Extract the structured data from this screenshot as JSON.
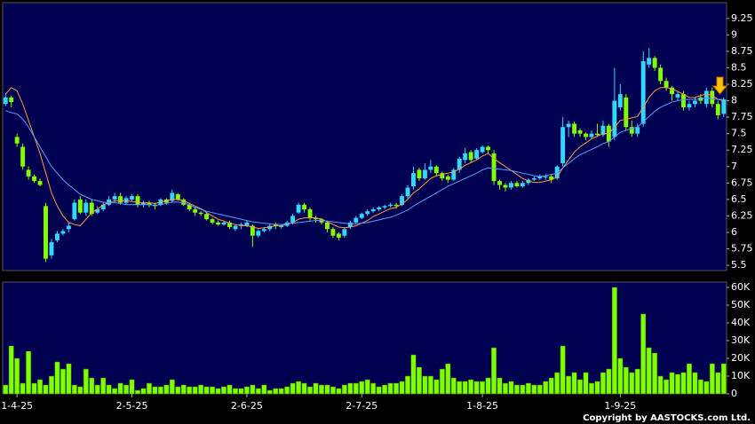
{
  "chart_data": [
    {
      "type": "candlestick",
      "up_color": "#33d6ff",
      "down_color": "#80ff00",
      "ylim": [
        5.42,
        9.49
      ],
      "yticks": [
        9.25,
        9,
        8.75,
        8.5,
        8.25,
        8,
        7.75,
        7.5,
        7.25,
        7,
        6.75,
        6.5,
        6.25,
        6,
        5.75,
        5.5
      ],
      "open": [
        7.95,
        8.05,
        7.45,
        7.3,
        6.95,
        6.85,
        6.78,
        6.4,
        5.65,
        5.88,
        5.98,
        6.05,
        6.2,
        6.5,
        6.3,
        6.45,
        6.3,
        6.35,
        6.42,
        6.5,
        6.55,
        6.45,
        6.5,
        6.55,
        6.42,
        6.45,
        6.42,
        6.42,
        6.5,
        6.48,
        6.58,
        6.5,
        6.42,
        6.35,
        6.3,
        6.28,
        6.2,
        6.15,
        6.12,
        6.15,
        6.05,
        6.1,
        6.1,
        6.1,
        5.95,
        6.02,
        6.05,
        6.12,
        6.08,
        6.1,
        6.15,
        6.3,
        6.42,
        6.35,
        6.22,
        6.2,
        6.15,
        6.05,
        5.98,
        5.95,
        6.08,
        6.15,
        6.22,
        6.28,
        6.32,
        6.35,
        6.38,
        6.4,
        6.42,
        6.42,
        6.55,
        6.7,
        6.95,
        6.82,
        6.95,
        7.0,
        6.9,
        6.85,
        6.8,
        6.95,
        7.1,
        7.22,
        7.12,
        7.22,
        7.3,
        7.2,
        6.78,
        6.72,
        6.68,
        6.75,
        6.7,
        6.75,
        6.8,
        6.82,
        6.85,
        6.85,
        6.82,
        7.05,
        7.6,
        7.65,
        7.55,
        7.5,
        7.45,
        7.5,
        7.48,
        7.62,
        7.45,
        7.9,
        8.05,
        7.6,
        7.5,
        7.65,
        8.55,
        8.65,
        8.5,
        8.3,
        8.2,
        8.05,
        8.1,
        7.9,
        7.95,
        8.05,
        7.95,
        8.15,
        7.95,
        7.8
      ],
      "high": [
        8.1,
        8.08,
        7.5,
        7.35,
        7.0,
        6.88,
        6.82,
        6.45,
        5.9,
        6.02,
        6.05,
        6.15,
        6.5,
        6.55,
        6.5,
        6.5,
        6.4,
        6.45,
        6.55,
        6.6,
        6.6,
        6.55,
        6.58,
        6.58,
        6.48,
        6.48,
        6.45,
        6.52,
        6.52,
        6.65,
        6.6,
        6.52,
        6.45,
        6.38,
        6.32,
        6.3,
        6.22,
        6.18,
        6.18,
        6.18,
        6.12,
        6.15,
        6.18,
        6.12,
        6.05,
        6.08,
        6.12,
        6.15,
        6.12,
        6.18,
        6.28,
        6.45,
        6.45,
        6.38,
        6.25,
        6.22,
        6.18,
        6.08,
        6.0,
        6.08,
        6.18,
        6.25,
        6.3,
        6.35,
        6.38,
        6.4,
        6.42,
        6.45,
        6.45,
        6.58,
        6.72,
        7.0,
        6.98,
        7.05,
        7.1,
        7.02,
        6.92,
        6.88,
        6.98,
        7.15,
        7.28,
        7.25,
        7.28,
        7.32,
        7.32,
        7.25,
        6.8,
        6.75,
        6.78,
        6.78,
        6.78,
        6.82,
        6.85,
        6.88,
        6.88,
        6.88,
        7.02,
        7.75,
        7.7,
        7.68,
        7.58,
        7.52,
        7.55,
        7.65,
        7.7,
        7.65,
        8.5,
        8.25,
        8.1,
        7.7,
        7.65,
        8.75,
        8.8,
        8.68,
        8.55,
        8.35,
        8.22,
        8.15,
        8.15,
        8.0,
        8.05,
        8.1,
        8.2,
        8.2,
        8.0,
        8.05
      ],
      "low": [
        7.92,
        7.9,
        7.3,
        6.95,
        6.8,
        6.75,
        6.7,
        5.55,
        5.6,
        5.85,
        5.95,
        6.0,
        6.18,
        6.28,
        6.25,
        6.25,
        6.28,
        6.32,
        6.4,
        6.45,
        6.42,
        6.42,
        6.48,
        6.38,
        6.38,
        6.38,
        6.35,
        6.4,
        6.42,
        6.45,
        6.48,
        6.4,
        6.32,
        6.25,
        6.25,
        6.18,
        6.12,
        6.1,
        6.1,
        6.05,
        6.02,
        6.05,
        6.08,
        5.78,
        5.92,
        6.0,
        6.02,
        6.05,
        6.05,
        6.08,
        6.12,
        6.28,
        6.3,
        6.18,
        6.15,
        6.12,
        6.0,
        5.92,
        5.88,
        5.92,
        6.05,
        6.12,
        6.2,
        6.25,
        6.3,
        6.32,
        6.35,
        6.38,
        6.36,
        6.4,
        6.5,
        6.65,
        6.78,
        6.8,
        6.9,
        6.85,
        6.78,
        6.75,
        6.78,
        6.9,
        7.05,
        7.05,
        7.1,
        7.2,
        7.2,
        6.72,
        6.65,
        6.62,
        6.65,
        6.68,
        6.68,
        6.72,
        6.78,
        6.8,
        6.8,
        6.75,
        6.8,
        7.0,
        7.45,
        7.45,
        7.45,
        7.4,
        7.42,
        7.45,
        7.45,
        7.3,
        7.4,
        7.85,
        7.55,
        7.45,
        7.45,
        7.6,
        8.5,
        8.45,
        8.25,
        8.15,
        8.0,
        8.0,
        7.85,
        7.85,
        7.9,
        7.95,
        7.9,
        7.9,
        7.72,
        7.75
      ],
      "close": [
        8.05,
        7.98,
        7.35,
        7.0,
        6.85,
        6.78,
        6.72,
        5.6,
        5.85,
        5.98,
        6.02,
        6.1,
        6.45,
        6.3,
        6.45,
        6.28,
        6.35,
        6.42,
        6.5,
        6.55,
        6.45,
        6.52,
        6.55,
        6.42,
        6.45,
        6.42,
        6.4,
        6.5,
        6.45,
        6.6,
        6.5,
        6.42,
        6.35,
        6.3,
        6.28,
        6.2,
        6.15,
        6.12,
        6.15,
        6.08,
        6.1,
        6.12,
        6.15,
        5.95,
        6.02,
        6.05,
        6.1,
        6.1,
        6.1,
        6.15,
        6.25,
        6.42,
        6.35,
        6.22,
        6.2,
        6.15,
        6.05,
        5.95,
        5.92,
        6.05,
        6.15,
        6.22,
        6.28,
        6.32,
        6.35,
        6.38,
        6.4,
        6.42,
        6.4,
        6.55,
        6.68,
        6.9,
        6.82,
        6.95,
        7.0,
        6.9,
        6.82,
        6.8,
        6.95,
        7.12,
        7.2,
        7.1,
        7.25,
        7.3,
        7.25,
        6.78,
        6.72,
        6.68,
        6.75,
        6.7,
        6.75,
        6.8,
        6.82,
        6.85,
        6.85,
        6.8,
        7.0,
        7.6,
        7.65,
        7.5,
        7.5,
        7.45,
        7.5,
        7.48,
        7.62,
        7.38,
        8.0,
        8.1,
        7.6,
        7.5,
        7.6,
        8.6,
        8.65,
        8.5,
        8.3,
        8.2,
        8.1,
        8.1,
        7.9,
        7.95,
        8.0,
        8.0,
        8.15,
        7.95,
        7.78,
        8.02
      ],
      "series": [
        {
          "color": "#ff9a3c",
          "values": [
            8.1,
            8.2,
            8.15,
            7.95,
            7.7,
            7.45,
            7.2,
            6.9,
            6.6,
            6.4,
            6.25,
            6.15,
            6.12,
            6.1,
            6.2,
            6.3,
            6.35,
            6.42,
            6.45,
            6.48,
            6.48,
            6.48,
            6.47,
            6.46,
            6.45,
            6.45,
            6.44,
            6.46,
            6.48,
            6.5,
            6.5,
            6.48,
            6.44,
            6.4,
            6.36,
            6.3,
            6.25,
            6.2,
            6.17,
            6.14,
            6.12,
            6.1,
            6.1,
            6.08,
            6.06,
            6.07,
            6.08,
            6.1,
            6.1,
            6.12,
            6.15,
            6.2,
            6.22,
            6.22,
            6.22,
            6.2,
            6.16,
            6.12,
            6.08,
            6.07,
            6.08,
            6.1,
            6.14,
            6.18,
            6.24,
            6.28,
            6.32,
            6.36,
            6.38,
            6.43,
            6.5,
            6.6,
            6.66,
            6.74,
            6.82,
            6.86,
            6.88,
            6.9,
            6.92,
            6.96,
            7.02,
            7.06,
            7.1,
            7.16,
            7.2,
            7.12,
            7.06,
            7.0,
            6.94,
            6.88,
            6.82,
            6.78,
            6.76,
            6.76,
            6.78,
            6.8,
            6.84,
            6.98,
            7.1,
            7.22,
            7.3,
            7.36,
            7.42,
            7.46,
            7.5,
            7.5,
            7.6,
            7.7,
            7.72,
            7.74,
            7.76,
            7.9,
            8.05,
            8.15,
            8.2,
            8.2,
            8.18,
            8.14,
            8.1,
            8.05,
            8.05,
            8.08,
            8.1,
            8.08,
            8.02,
            8.0
          ]
        },
        {
          "color": "#5a9cff",
          "values": [
            7.85,
            7.82,
            7.8,
            7.72,
            7.6,
            7.45,
            7.3,
            7.15,
            7.0,
            6.9,
            6.8,
            6.72,
            6.65,
            6.58,
            6.54,
            6.5,
            6.48,
            6.46,
            6.45,
            6.45,
            6.44,
            6.42,
            6.42,
            6.42,
            6.42,
            6.42,
            6.41,
            6.42,
            6.44,
            6.46,
            6.46,
            6.45,
            6.42,
            6.38,
            6.35,
            6.32,
            6.3,
            6.28,
            6.26,
            6.24,
            6.22,
            6.2,
            6.18,
            6.16,
            6.15,
            6.14,
            6.13,
            6.12,
            6.12,
            6.13,
            6.14,
            6.15,
            6.16,
            6.17,
            6.18,
            6.18,
            6.17,
            6.16,
            6.15,
            6.14,
            6.13,
            6.13,
            6.14,
            6.15,
            6.17,
            6.19,
            6.21,
            6.23,
            6.26,
            6.3,
            6.34,
            6.4,
            6.45,
            6.5,
            6.55,
            6.6,
            6.65,
            6.7,
            6.74,
            6.78,
            6.82,
            6.86,
            6.9,
            6.95,
            6.98,
            6.97,
            6.96,
            6.95,
            6.94,
            6.92,
            6.9,
            6.88,
            6.86,
            6.85,
            6.86,
            6.88,
            6.9,
            6.98,
            7.05,
            7.12,
            7.18,
            7.22,
            7.26,
            7.3,
            7.35,
            7.38,
            7.45,
            7.52,
            7.55,
            7.58,
            7.6,
            7.68,
            7.76,
            7.84,
            7.9,
            7.94,
            7.98,
            8.0,
            8.02,
            8.02,
            8.02,
            8.03,
            8.04,
            8.03,
            8.02,
            8.02
          ]
        }
      ]
    },
    {
      "type": "bar",
      "color": "#80ff00",
      "ylim": [
        0,
        63000
      ],
      "yticks": [
        {
          "value": 60000,
          "label": "60K"
        },
        {
          "value": 50000,
          "label": "50K"
        },
        {
          "value": 40000,
          "label": "40K"
        },
        {
          "value": 30000,
          "label": "30K"
        },
        {
          "value": 20000,
          "label": "20K"
        },
        {
          "value": 10000,
          "label": "10K"
        },
        0
      ],
      "categories": [
        null,
        null,
        "1-4-25",
        null,
        null,
        null,
        null,
        null,
        null,
        null,
        null,
        null,
        null,
        null,
        null,
        null,
        null,
        null,
        null,
        null,
        null,
        null,
        "2-5-25",
        null,
        null,
        null,
        null,
        null,
        null,
        null,
        null,
        null,
        null,
        null,
        null,
        null,
        null,
        null,
        null,
        null,
        null,
        null,
        "2-6-25",
        null,
        null,
        null,
        null,
        null,
        null,
        null,
        null,
        null,
        null,
        null,
        null,
        null,
        null,
        null,
        null,
        null,
        null,
        null,
        "2-7-25",
        null,
        null,
        null,
        null,
        null,
        null,
        null,
        null,
        null,
        null,
        null,
        null,
        null,
        null,
        null,
        null,
        null,
        null,
        null,
        null,
        "1-8-25",
        null,
        null,
        null,
        null,
        null,
        null,
        null,
        null,
        null,
        null,
        null,
        null,
        null,
        null,
        null,
        null,
        null,
        null,
        null,
        null,
        null,
        null,
        null,
        "1-9-25",
        null,
        null,
        null,
        null,
        null,
        null,
        null,
        null,
        null,
        null,
        null,
        null,
        null,
        null,
        null,
        null,
        null,
        null
      ],
      "values": [
        5000,
        27000,
        20000,
        6000,
        24000,
        6000,
        8000,
        5000,
        10000,
        18000,
        14000,
        17000,
        5000,
        4000,
        14000,
        9000,
        5000,
        9000,
        5000,
        3000,
        6000,
        5000,
        8000,
        2000,
        3000,
        6000,
        4000,
        4000,
        5000,
        8000,
        4000,
        5000,
        4000,
        4000,
        5000,
        4000,
        4000,
        3000,
        4000,
        5000,
        3000,
        3000,
        4000,
        5000,
        3000,
        5000,
        2000,
        3000,
        3000,
        4000,
        6000,
        7000,
        6000,
        4000,
        6000,
        5000,
        5000,
        4000,
        3000,
        5000,
        6000,
        6000,
        7000,
        8000,
        6000,
        4000,
        5000,
        6000,
        6000,
        7000,
        10000,
        22000,
        15000,
        10000,
        10000,
        8000,
        14000,
        17000,
        9000,
        7000,
        7000,
        8000,
        7000,
        7000,
        9000,
        26000,
        9000,
        6000,
        7000,
        5000,
        5000,
        6000,
        5000,
        5000,
        7000,
        9000,
        12000,
        27000,
        10000,
        12000,
        8000,
        12000,
        6000,
        7000,
        12000,
        14000,
        60000,
        20000,
        15000,
        12000,
        14000,
        45000,
        26000,
        23000,
        10000,
        8000,
        12000,
        11000,
        12000,
        17000,
        12000,
        8000,
        7000,
        17000,
        12000,
        17000
      ]
    }
  ],
  "copyright": "Copyright by AASTOCKS.com Ltd."
}
